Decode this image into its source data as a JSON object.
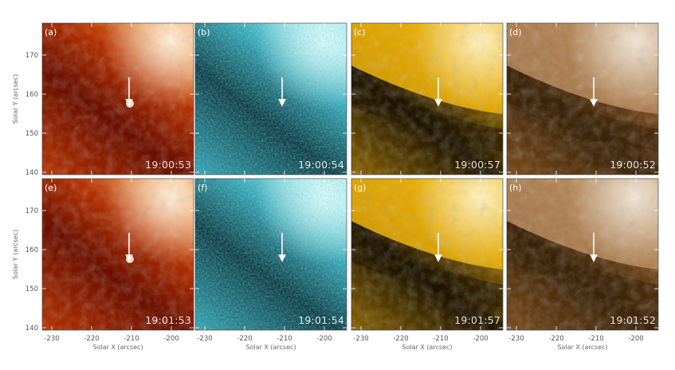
{
  "figure": {
    "panels": [
      {
        "label": "(a)",
        "time": "19:00:53",
        "colormap": "red"
      },
      {
        "label": "(b)",
        "time": "19:00:54",
        "colormap": "cyan"
      },
      {
        "label": "(c)",
        "time": "19:00:57",
        "colormap": "gold"
      },
      {
        "label": "(d)",
        "time": "19:00:52",
        "colormap": "brown"
      },
      {
        "label": "(e)",
        "time": "19:01:53",
        "colormap": "red"
      },
      {
        "label": "(f)",
        "time": "19:01:54",
        "colormap": "cyan"
      },
      {
        "label": "(g)",
        "time": "19:01:57",
        "colormap": "gold"
      },
      {
        "label": "(h)",
        "time": "19:01:52",
        "colormap": "brown"
      }
    ],
    "x_axis": {
      "title": "Solar X (arcsec)",
      "ticks": [
        "-230",
        "-220",
        "-210",
        "-200"
      ]
    },
    "y_axis": {
      "title": "Solar Y (arcsec)",
      "ticks": [
        "170",
        "160",
        "150",
        "140"
      ]
    },
    "colors": {
      "red": [
        "#6a0f00",
        "#b83200",
        "#f08a30",
        "#fff3e0"
      ],
      "cyan": [
        "#003a44",
        "#2aa8b8",
        "#88eef4",
        "#d8ffff"
      ],
      "gold": [
        "#1e1400",
        "#8a6200",
        "#f2b400",
        "#fff4c8"
      ],
      "brown": [
        "#3a2208",
        "#7a4c1c",
        "#b88a5a",
        "#f4eadc"
      ],
      "arrow": "#ffffff"
    }
  }
}
